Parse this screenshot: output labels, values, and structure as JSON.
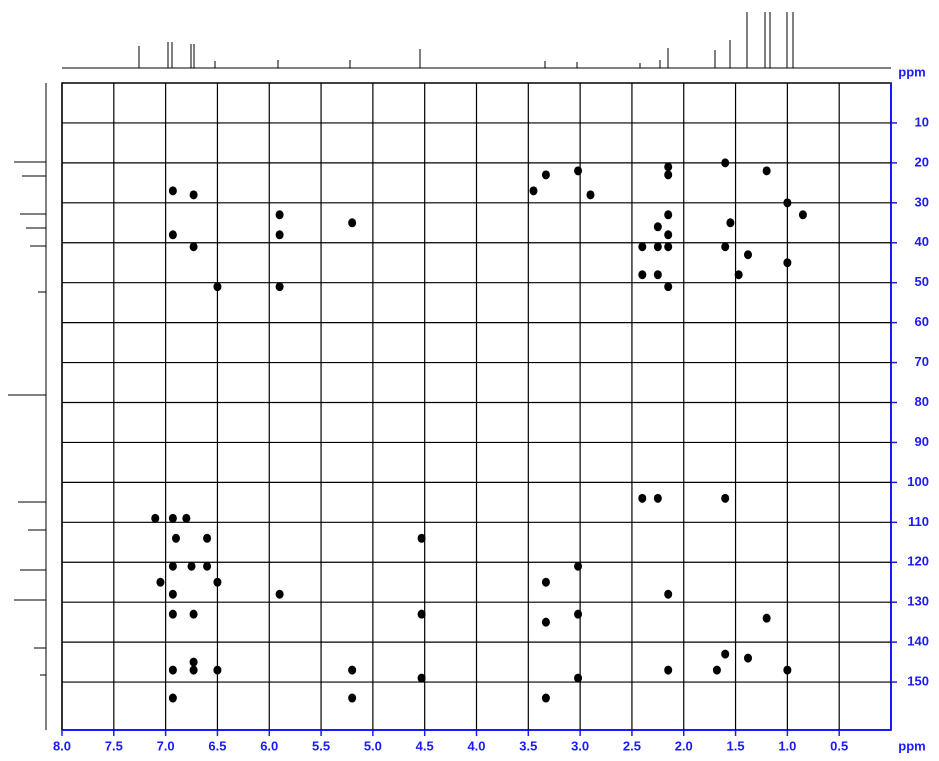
{
  "chart_data": {
    "type": "scatter",
    "x_label": "ppm",
    "y_label": "ppm",
    "xlim": [
      8,
      0
    ],
    "ylim": [
      0,
      162
    ],
    "xticks": [
      {
        "value": 8,
        "label": "8.0"
      },
      7.5,
      {
        "value": 7,
        "label": "7.0"
      },
      6.5,
      {
        "value": 6,
        "label": "6.0"
      },
      5.5,
      {
        "value": 5,
        "label": "5.0"
      },
      4.5,
      {
        "value": 4,
        "label": "4.0"
      },
      3.5,
      {
        "value": 3,
        "label": "3.0"
      },
      2.5,
      {
        "value": 2,
        "label": "2.0"
      },
      1.5,
      {
        "value": 1,
        "label": "1.0"
      },
      0.5
    ],
    "yticks": [
      10,
      20,
      30,
      40,
      50,
      60,
      70,
      80,
      90,
      100,
      110,
      120,
      130,
      140,
      150
    ],
    "grid": true,
    "color": "#000000",
    "x": [
      6.93,
      6.73,
      6.93,
      6.73,
      6.5,
      5.9,
      5.9,
      5.9,
      5.2,
      3.33,
      3.02,
      3.45,
      2.9,
      2.15,
      2.15,
      2.15,
      2.25,
      2.15,
      2.4,
      2.25,
      2.15,
      2.4,
      2.25,
      2.15,
      1.6,
      1.55,
      1.6,
      1.38,
      1.47,
      1.2,
      1.0,
      1.0,
      0.85,
      2.4,
      2.25,
      1.6,
      7.1,
      6.93,
      6.8,
      6.9,
      6.6,
      4.53,
      6.93,
      6.75,
      6.6,
      3.02,
      7.05,
      6.93,
      6.5,
      5.9,
      3.33,
      2.15,
      6.93,
      6.73,
      4.53,
      3.33,
      3.02,
      1.2,
      6.73,
      1.6,
      1.38,
      6.93,
      6.73,
      6.5,
      5.2,
      4.53,
      3.02,
      1.68,
      1.0,
      6.93,
      5.2,
      3.33,
      2.15
    ],
    "values": [
      27,
      28,
      38,
      41,
      51,
      33,
      38,
      51,
      35,
      23,
      22,
      27,
      28,
      21,
      23,
      33,
      36,
      38,
      41,
      41,
      41,
      48,
      48,
      51,
      20,
      35,
      41,
      43,
      48,
      22,
      30,
      45,
      33,
      104,
      104,
      104,
      109,
      109,
      109,
      114,
      114,
      114,
      121,
      121,
      121,
      121,
      125,
      128,
      125,
      128,
      125,
      128,
      133,
      133,
      133,
      135,
      133,
      134,
      145,
      143,
      144,
      147,
      147,
      147,
      147,
      149,
      149,
      147,
      147,
      154,
      154,
      154,
      147
    ]
  }
}
